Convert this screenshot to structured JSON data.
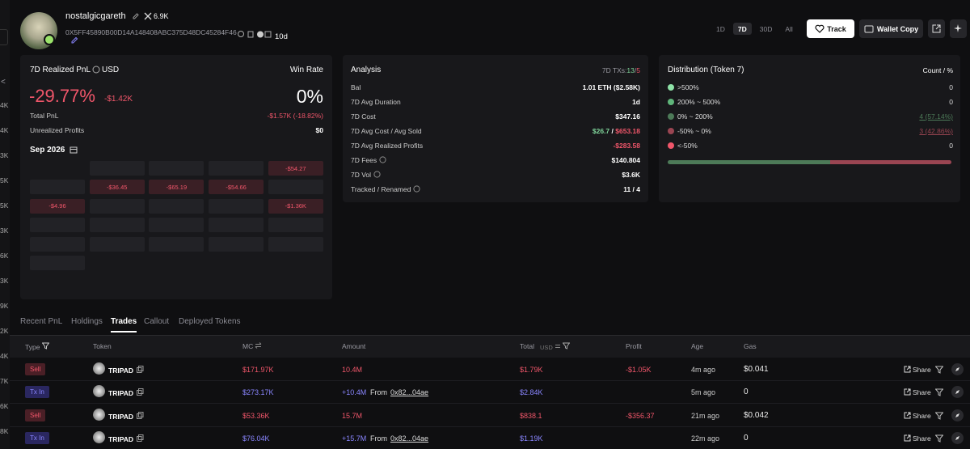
{
  "sidebar_labels": [
    "4K",
    "4K",
    "3K",
    "5K",
    "5K",
    "3K",
    "6K",
    "3K",
    "9K",
    "2K",
    "4K",
    "7K",
    "6K",
    "8K"
  ],
  "profile": {
    "name": "nostalgicgareth",
    "followers": "6.9K",
    "address": "0X5FF45890B00D14A148408ABC375D48DC45284F46",
    "age": "10d"
  },
  "timeframes": {
    "options": [
      "1D",
      "7D",
      "30D",
      "All"
    ],
    "active_index": 1
  },
  "buttons": {
    "track": "Track",
    "wallet_copy": "Wallet Copy"
  },
  "pnl_card": {
    "title": "7D Realized PnL",
    "currency": "USD",
    "win_rate_label": "Win Rate",
    "pnl_percent": "-29.77%",
    "pnl_usd": "-$1.42K",
    "win_rate": "0%",
    "total_pnl_label": "Total PnL",
    "total_pnl": "-$1.57K (-18.82%)",
    "unrealized_label": "Unrealized Profits",
    "unrealized": "$0",
    "month": "Sep 2026",
    "calendar": {
      "start_column": 1,
      "cells": [
        null,
        null,
        null,
        "-$54.27",
        null,
        "-$36.45",
        "-$65.19",
        "-$54.66",
        null,
        "-$4.96",
        null,
        null,
        null,
        "-$1.36K",
        null,
        null,
        null,
        null,
        null,
        null,
        null,
        null,
        null,
        null,
        null
      ]
    }
  },
  "analysis": {
    "title": "Analysis",
    "txs_label": "7D TXs:",
    "txs_buys": "13",
    "txs_separator": "/",
    "txs_sells": "5",
    "rows": [
      {
        "label": "Bal",
        "values": [
          "1.01 ETH ($2.58K)"
        ],
        "tones": [
          "white"
        ]
      },
      {
        "label": "7D Avg Duration",
        "values": [
          "1d"
        ],
        "tones": [
          "white"
        ]
      },
      {
        "label": "7D Cost",
        "values": [
          "$347.16"
        ],
        "tones": [
          "white"
        ]
      },
      {
        "label": "7D Avg Cost / Avg Sold",
        "values": [
          "$26.7",
          " / ",
          "$653.18"
        ],
        "tones": [
          "green",
          "white",
          "red"
        ]
      },
      {
        "label": "7D Avg Realized Profits",
        "values": [
          "-$283.58"
        ],
        "tones": [
          "red"
        ]
      },
      {
        "label": "7D Fees",
        "values": [
          "$140.804"
        ],
        "tones": [
          "white"
        ],
        "info": true
      },
      {
        "label": "7D Vol",
        "values": [
          "$3.6K"
        ],
        "tones": [
          "white"
        ],
        "info": true
      },
      {
        "label": "Tracked / Renamed",
        "values": [
          "11 / 4"
        ],
        "tones": [
          "white"
        ],
        "info": true
      }
    ]
  },
  "distribution": {
    "title": "Distribution (Token 7)",
    "header": "Count / %",
    "rows": [
      {
        "range": ">500%",
        "color": "#8fe3a8",
        "count": 0
      },
      {
        "range": "200% ~ 500%",
        "color": "#5fb57a",
        "count": 0
      },
      {
        "range": "0% ~ 200%",
        "color": "#4d7a58",
        "count": 4,
        "percent": 57.14,
        "label": "4 (57.14%)"
      },
      {
        "range": "-50% ~ 0%",
        "color": "#9a4552",
        "count": 3,
        "percent": 42.86,
        "label": "3 (42.86%)"
      },
      {
        "range": "<-50%",
        "color": "#f0566a",
        "count": 0
      }
    ]
  },
  "tabs": {
    "items": [
      "Recent PnL",
      "Holdings",
      "Trades",
      "Callout",
      "Deployed Tokens"
    ],
    "active_index": 2
  },
  "table": {
    "headers": {
      "type": "Type",
      "token": "Token",
      "mc": "MC",
      "amount": "Amount",
      "total": "Total",
      "currency": "USD",
      "profit": "Profit",
      "age": "Age",
      "gas": "Gas"
    },
    "share": "Share",
    "rows": [
      {
        "type": "Sell",
        "color": "#f0566a",
        "token": "TRIPAD",
        "mc": "$171.97K",
        "amount": "10.4M",
        "total": "$1.79K",
        "profit": "-$1.05K",
        "age": "4m ago",
        "gas": "$0.041"
      },
      {
        "type": "Tx In",
        "color": "#8a86ff",
        "token": "TRIPAD",
        "mc": "$273.17K",
        "amount": "+10.4M",
        "from_label": "From",
        "from": "0x82...04ae",
        "total": "$2.84K",
        "age": "5m ago",
        "gas": "0"
      },
      {
        "type": "Sell",
        "color": "#f0566a",
        "token": "TRIPAD",
        "mc": "$53.36K",
        "amount": "15.7M",
        "total": "$838.1",
        "profit": "-$356.37",
        "age": "21m ago",
        "gas": "$0.042"
      },
      {
        "type": "Tx In",
        "color": "#8a86ff",
        "token": "TRIPAD",
        "mc": "$76.04K",
        "amount": "+15.7M",
        "from_label": "From",
        "from": "0x82...04ae",
        "total": "$1.19K",
        "age": "22m ago",
        "gas": "0"
      }
    ]
  }
}
